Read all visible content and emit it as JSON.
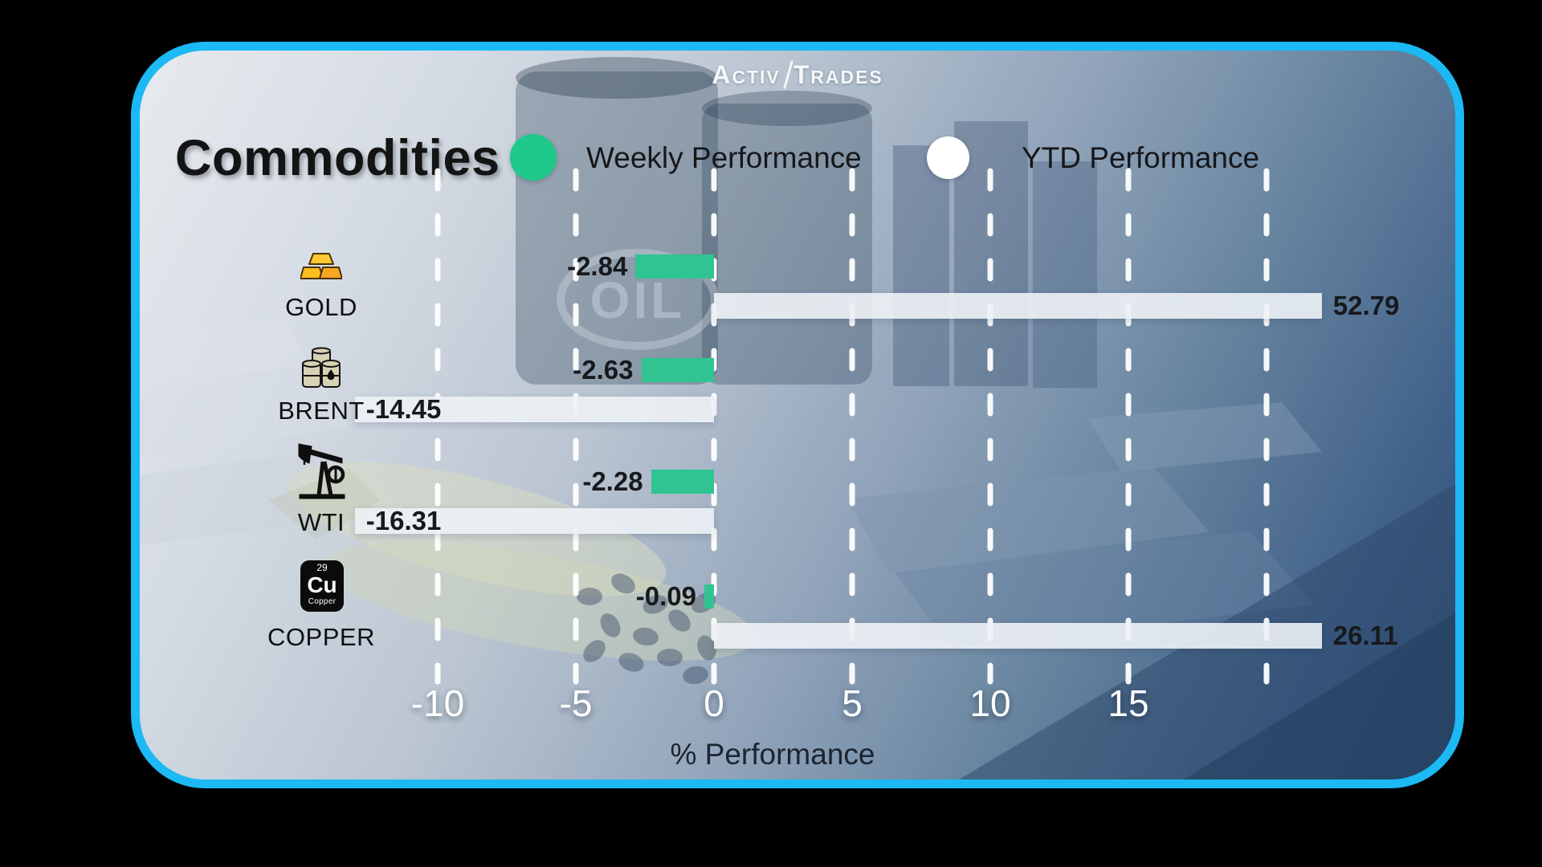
{
  "brand": {
    "word1": "Activ",
    "word2": "Trades"
  },
  "header": {
    "title": "Commodities",
    "legend": [
      {
        "label": "Weekly Performance",
        "color": "#1fc98b"
      },
      {
        "label": "YTD Performance",
        "color": "#ffffff"
      }
    ]
  },
  "chart_data": {
    "type": "bar",
    "orientation": "horizontal",
    "title": "Commodities",
    "xlabel": "% Performance",
    "x_ticks": [
      -10,
      -5,
      0,
      5,
      10,
      15
    ],
    "x_gridlines": [
      -10,
      -5,
      0,
      5,
      10,
      15,
      20
    ],
    "xlim": [
      -13,
      22
    ],
    "grid": "vertical-dashed-white",
    "legend_position": "top",
    "categories": [
      "GOLD",
      "BRENT",
      "WTI",
      "COPPER"
    ],
    "series": [
      {
        "name": "Weekly Performance",
        "color": "#2fc492",
        "values": [
          -2.84,
          -2.63,
          -2.28,
          -0.09
        ]
      },
      {
        "name": "YTD Performance",
        "color": "#eef2f6",
        "values": [
          52.79,
          -14.45,
          -16.31,
          26.11
        ]
      }
    ]
  },
  "icons": {
    "copper": {
      "number": "29",
      "symbol": "Cu",
      "caption": "Copper"
    }
  },
  "colors": {
    "card_border": "#1cb9f4",
    "outside_background": "#000000",
    "weekly_bar": "#2fc492",
    "ytd_bar": "#eef2f6",
    "tick_text": "#ffffff"
  }
}
